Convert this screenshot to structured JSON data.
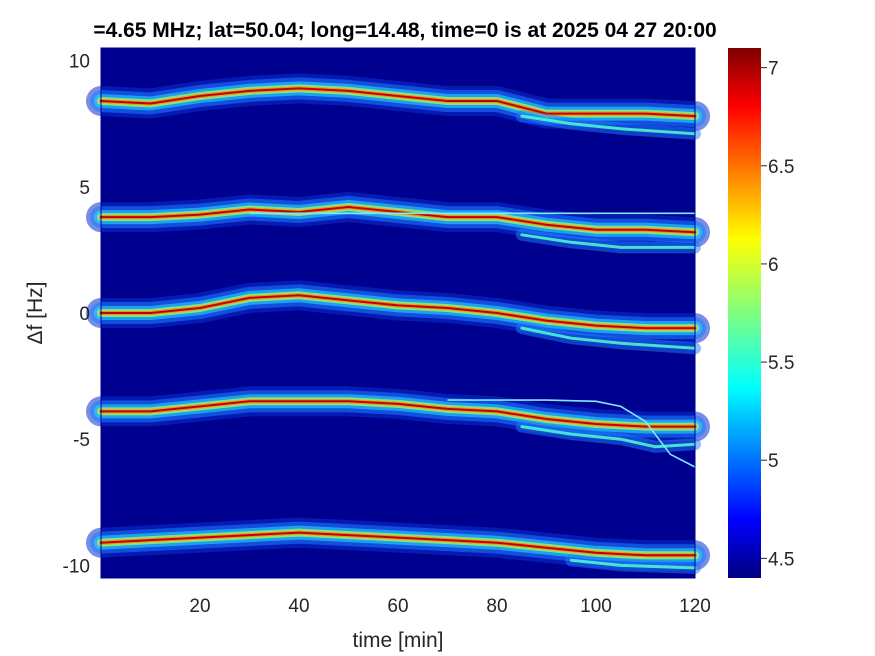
{
  "chart_data": {
    "type": "heatmap",
    "title": "=4.65 MHz;  lat=50.04; long=14.48, time=0 is at 2025 04 27 20:00",
    "xlabel": "time [min]",
    "ylabel": "Δf [Hz]",
    "xlim": [
      0,
      120
    ],
    "ylim": [
      -10.5,
      10.5
    ],
    "xticks": [
      "20",
      "40",
      "60",
      "80",
      "100",
      "120"
    ],
    "xtick_values": [
      20,
      40,
      60,
      80,
      100,
      120
    ],
    "yticks": [
      "10",
      "5",
      "0",
      "-5",
      "-10"
    ],
    "ytick_values": [
      10,
      5,
      0,
      -5,
      -10
    ],
    "colorbar": {
      "ticks": [
        "7",
        "6.5",
        "6",
        "5.5",
        "5",
        "4.5"
      ],
      "tick_values": [
        7,
        6.5,
        6,
        5.5,
        5,
        4.5
      ],
      "range": [
        4.4,
        7.1
      ],
      "colormap": "jet"
    },
    "background_color": "#00008f",
    "traces": [
      {
        "base": 8.4,
        "x": [
          0,
          10,
          20,
          30,
          40,
          50,
          60,
          70,
          80,
          90,
          100,
          110,
          120
        ],
        "y": [
          8.4,
          8.3,
          8.6,
          8.8,
          8.9,
          8.8,
          8.6,
          8.4,
          8.4,
          7.9,
          7.9,
          7.9,
          7.8
        ]
      },
      {
        "base": 3.9,
        "x": [
          0,
          10,
          20,
          30,
          40,
          50,
          60,
          70,
          80,
          90,
          100,
          110,
          120
        ],
        "y": [
          3.8,
          3.8,
          3.9,
          4.1,
          4.0,
          4.2,
          4.0,
          3.8,
          3.8,
          3.5,
          3.3,
          3.3,
          3.2
        ]
      },
      {
        "base": 0.0,
        "x": [
          0,
          10,
          20,
          30,
          40,
          50,
          60,
          70,
          80,
          90,
          100,
          110,
          120
        ],
        "y": [
          0.0,
          0.0,
          0.2,
          0.6,
          0.7,
          0.5,
          0.3,
          0.2,
          0.0,
          -0.3,
          -0.5,
          -0.6,
          -0.6
        ]
      },
      {
        "base": -3.9,
        "x": [
          0,
          10,
          20,
          30,
          40,
          50,
          60,
          70,
          80,
          90,
          100,
          110,
          120
        ],
        "y": [
          -3.9,
          -3.9,
          -3.7,
          -3.5,
          -3.5,
          -3.5,
          -3.6,
          -3.8,
          -3.9,
          -4.2,
          -4.4,
          -4.5,
          -4.5
        ]
      },
      {
        "base": -9.1,
        "x": [
          0,
          10,
          20,
          30,
          40,
          50,
          60,
          70,
          80,
          90,
          100,
          110,
          120
        ],
        "y": [
          -9.1,
          -9.0,
          -8.9,
          -8.8,
          -8.7,
          -8.8,
          -8.9,
          -9.0,
          -9.1,
          -9.3,
          -9.5,
          -9.6,
          -9.6
        ]
      }
    ],
    "secondary_traces": [
      {
        "x": [
          85,
          95,
          105,
          120
        ],
        "y": [
          7.8,
          7.5,
          7.3,
          7.1
        ]
      },
      {
        "x": [
          85,
          95,
          105,
          120
        ],
        "y": [
          3.1,
          2.8,
          2.6,
          2.6
        ]
      },
      {
        "x": [
          85,
          95,
          105,
          120
        ],
        "y": [
          -0.6,
          -1.0,
          -1.2,
          -1.4
        ]
      },
      {
        "x": [
          85,
          95,
          105,
          112,
          120
        ],
        "y": [
          -4.5,
          -4.8,
          -5.0,
          -5.3,
          -5.2
        ]
      },
      {
        "x": [
          95,
          105,
          120
        ],
        "y": [
          -9.8,
          -10.0,
          -10.1
        ]
      }
    ],
    "flat_lines": [
      {
        "x": [
          30,
          120
        ],
        "y": [
          3.95,
          3.95
        ]
      },
      {
        "x": [
          70,
          90,
          100,
          105,
          110,
          115,
          120
        ],
        "y": [
          -3.45,
          -3.45,
          -3.5,
          -3.7,
          -4.3,
          -5.6,
          -6.1
        ]
      }
    ]
  }
}
